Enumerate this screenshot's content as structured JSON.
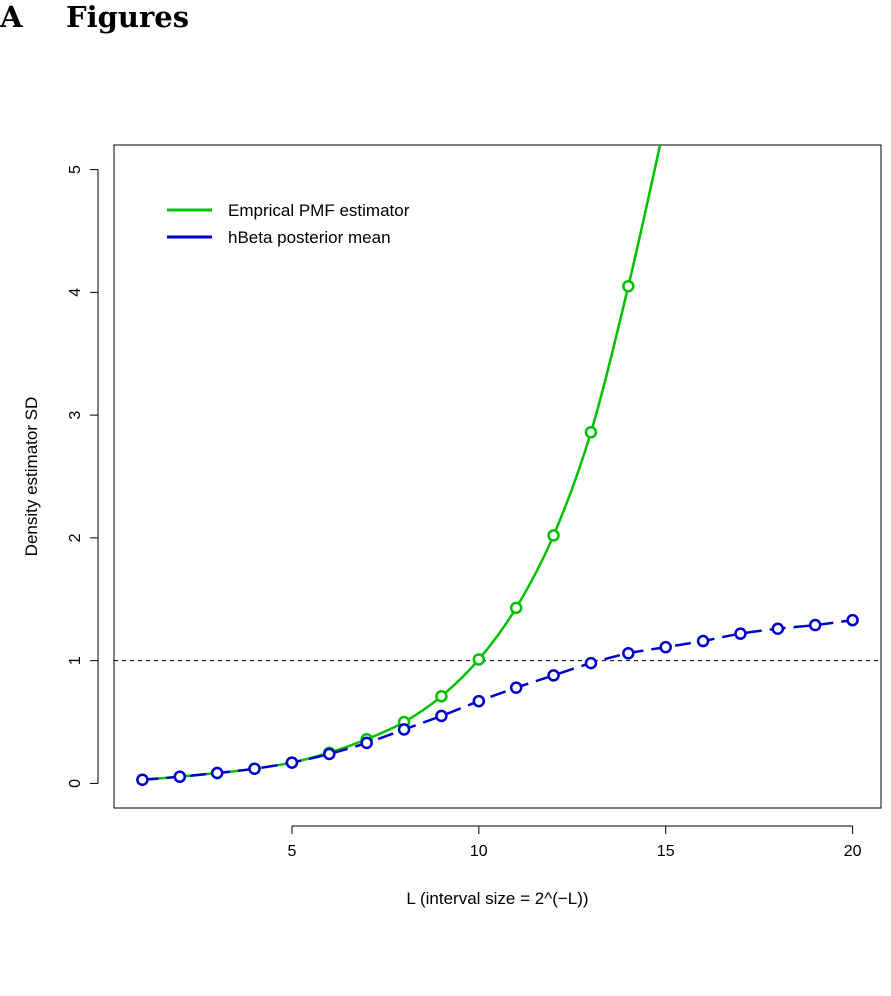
{
  "section": {
    "number": "A",
    "title": "Figures"
  },
  "chart_data": {
    "type": "line",
    "title": "",
    "xlabel": "L  (interval size = 2^(−L))",
    "ylabel": "Density estimator SD",
    "xlim": [
      0.24,
      20.76
    ],
    "ylim": [
      -0.2,
      5.2
    ],
    "x_ticks": [
      5,
      10,
      15,
      20
    ],
    "y_ticks": [
      0,
      1,
      2,
      3,
      4,
      5
    ],
    "grid": false,
    "legend_position": "top-left",
    "reference_line": {
      "y": 1,
      "style": "dashed",
      "color": "#000000"
    },
    "series": [
      {
        "name": "Emprical PMF estimator",
        "color": "#00c000",
        "line_style": "solid",
        "markers": "open-circle",
        "x": [
          1,
          2,
          3,
          4,
          5,
          6,
          7,
          8,
          9,
          10,
          11,
          12,
          13,
          14
        ],
        "y": [
          0.03,
          0.055,
          0.085,
          0.12,
          0.17,
          0.25,
          0.36,
          0.5,
          0.71,
          1.01,
          1.43,
          2.02,
          2.86,
          4.05
        ],
        "curve_extends_to": {
          "x": 14.85,
          "y": 5.2
        }
      },
      {
        "name": "hBeta posterior mean",
        "color": "#0000cc",
        "line_style": "dashed",
        "markers": "open-circle",
        "x": [
          1,
          2,
          3,
          4,
          5,
          6,
          7,
          8,
          9,
          10,
          11,
          12,
          13,
          14,
          15,
          16,
          17,
          18,
          19,
          20
        ],
        "y": [
          0.03,
          0.055,
          0.085,
          0.12,
          0.17,
          0.24,
          0.33,
          0.44,
          0.55,
          0.67,
          0.78,
          0.88,
          0.98,
          1.06,
          1.11,
          1.16,
          1.22,
          1.26,
          1.29,
          1.33
        ]
      }
    ]
  }
}
